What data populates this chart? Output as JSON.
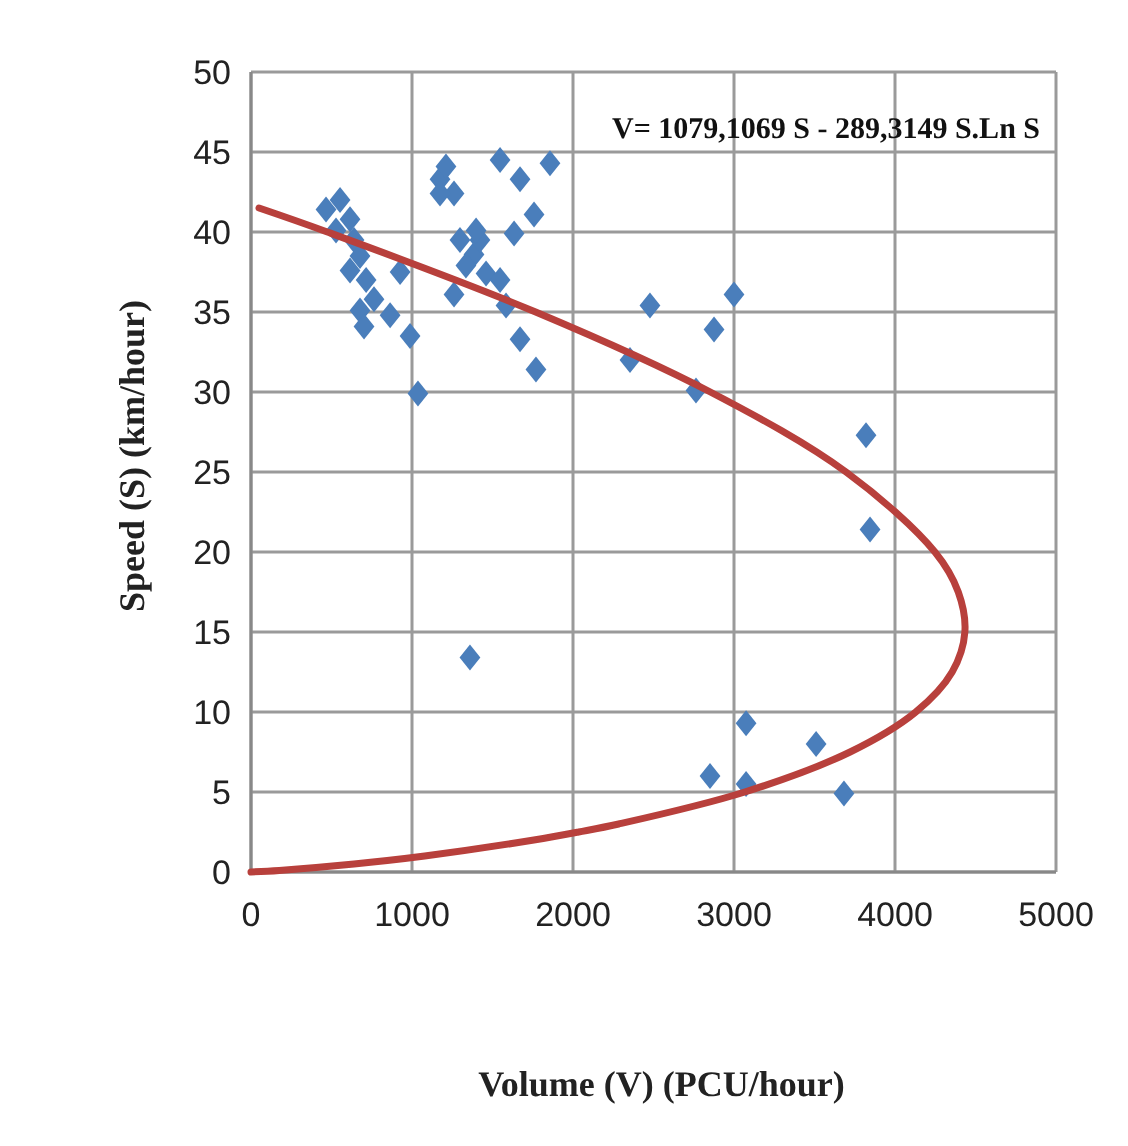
{
  "chart_data": {
    "type": "scatter",
    "xlabel": "Volume (V) (PCU/hour)",
    "ylabel": "Speed (S) (km/hour)",
    "annotations": [
      "V= 1079,1069 S - 289,3149 S.Ln S"
    ],
    "xlim": [
      0,
      5000
    ],
    "xticks": [
      0,
      1000,
      2000,
      3000,
      4000,
      5000
    ],
    "ylim": [
      0,
      50
    ],
    "yticks": [
      0,
      5,
      10,
      15,
      20,
      25,
      30,
      35,
      40,
      45,
      50
    ],
    "grid": true,
    "series": [
      {
        "color": "#4a7ebb",
        "marker": "diamond",
        "x": [
          466,
          553,
          615,
          528,
          640,
          677,
          615,
          715,
          764,
          677,
          702,
          864,
          926,
          988,
          1037,
          1174,
          1211,
          1261,
          1174,
          1298,
          1385,
          1422,
          1335,
          1261,
          1460,
          1547,
          1547,
          1671,
          1758,
          1634,
          1584,
          1671,
          1770,
          1857,
          1398,
          2354,
          2478,
          3000,
          2876,
          2764,
          3820,
          3845,
          3075,
          3510,
          2851,
          3075,
          3683,
          1360
        ],
        "values": [
          41.4,
          42,
          40.8,
          40.1,
          39.5,
          38.5,
          37.6,
          37,
          35.8,
          35.1,
          34.1,
          34.8,
          37.5,
          33.5,
          29.9,
          43.3,
          44.1,
          42.4,
          42.4,
          39.5,
          38.6,
          39.5,
          37.9,
          36.1,
          37.4,
          37,
          44.5,
          43.3,
          41.1,
          39.9,
          35.4,
          33.3,
          31.4,
          44.3,
          40.1,
          32,
          35.4,
          36.1,
          33.9,
          30.1,
          27.3,
          21.4,
          9.3,
          8,
          6,
          5.5,
          4.9,
          13.4
        ]
      },
      {
        "type": "line",
        "color": "#b8403c",
        "marker": "none",
        "line_style": "solid",
        "x": [
          0,
          175,
          640,
          1079,
          1757,
          2035,
          2284,
          3067,
          3721,
          4129,
          4355,
          4434,
          4393,
          4248,
          3696,
          2853,
          1768,
          474,
          50
        ],
        "values": [
          0,
          0.1,
          0.5,
          1,
          2,
          2.5,
          3,
          5,
          7.5,
          10,
          12.5,
          15,
          17.5,
          20,
          25,
          30,
          35,
          40,
          41.5
        ]
      }
    ]
  }
}
